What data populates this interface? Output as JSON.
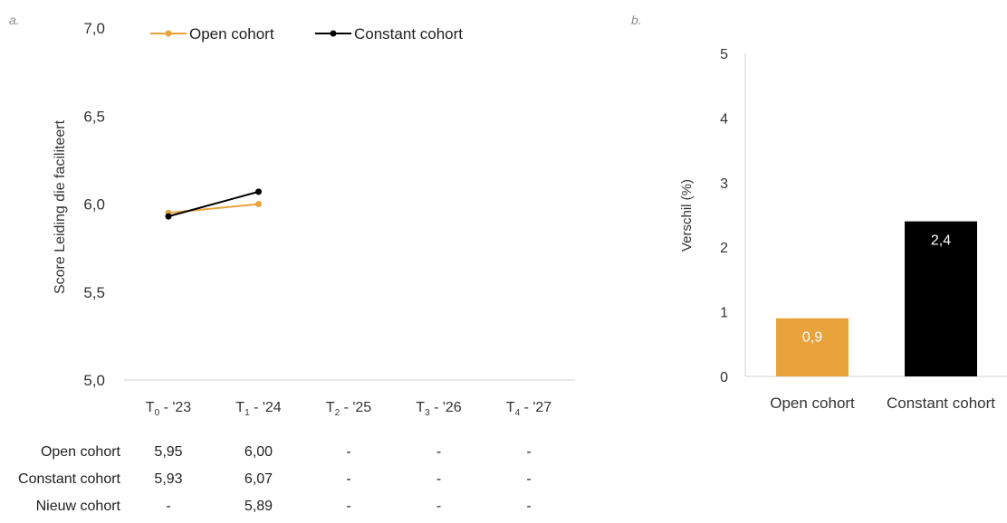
{
  "panels": {
    "a": "a.",
    "b": "b."
  },
  "chart_data": [
    {
      "type": "line",
      "ylabel": "Score Leiding die faciliteert",
      "xlabel": "",
      "ylim": [
        5.0,
        7.0
      ],
      "yticks": [
        "5,0",
        "5,5",
        "6,0",
        "6,5",
        "7,0"
      ],
      "categories": [
        {
          "base": "T",
          "sub": "0",
          "suffix": " - '23"
        },
        {
          "base": "T",
          "sub": "1",
          "suffix": " - '24"
        },
        {
          "base": "T",
          "sub": "2",
          "suffix": " - '25"
        },
        {
          "base": "T",
          "sub": "3",
          "suffix": " - '26"
        },
        {
          "base": "T",
          "sub": "4",
          "suffix": " - '27"
        }
      ],
      "series": [
        {
          "name": "Open cohort",
          "color": "#e8a33d",
          "values": [
            5.95,
            6.0,
            null,
            null,
            null
          ]
        },
        {
          "name": "Constant cohort",
          "color": "#000000",
          "values": [
            5.93,
            6.07,
            null,
            null,
            null
          ]
        }
      ],
      "legend": "top",
      "grid": false
    },
    {
      "type": "bar",
      "ylabel": "Verschil (%)",
      "xlabel": "",
      "ylim": [
        0,
        5
      ],
      "yticks": [
        "0",
        "1",
        "2",
        "3",
        "4",
        "5"
      ],
      "categories": [
        "Open cohort",
        "Constant cohort"
      ],
      "values": [
        0.9,
        2.4
      ],
      "data_labels": [
        "0,9",
        "2,4"
      ],
      "colors": [
        "#e8a33d",
        "#000000"
      ]
    }
  ],
  "table": {
    "rows": [
      {
        "label": "Open cohort",
        "cells": [
          "5,95",
          "6,00",
          "-",
          "-",
          "-"
        ]
      },
      {
        "label": "Constant cohort",
        "cells": [
          "5,93",
          "6,07",
          "-",
          "-",
          "-"
        ]
      },
      {
        "label": "Nieuw cohort",
        "cells": [
          "-",
          "5,89",
          "-",
          "-",
          "-"
        ]
      }
    ]
  }
}
